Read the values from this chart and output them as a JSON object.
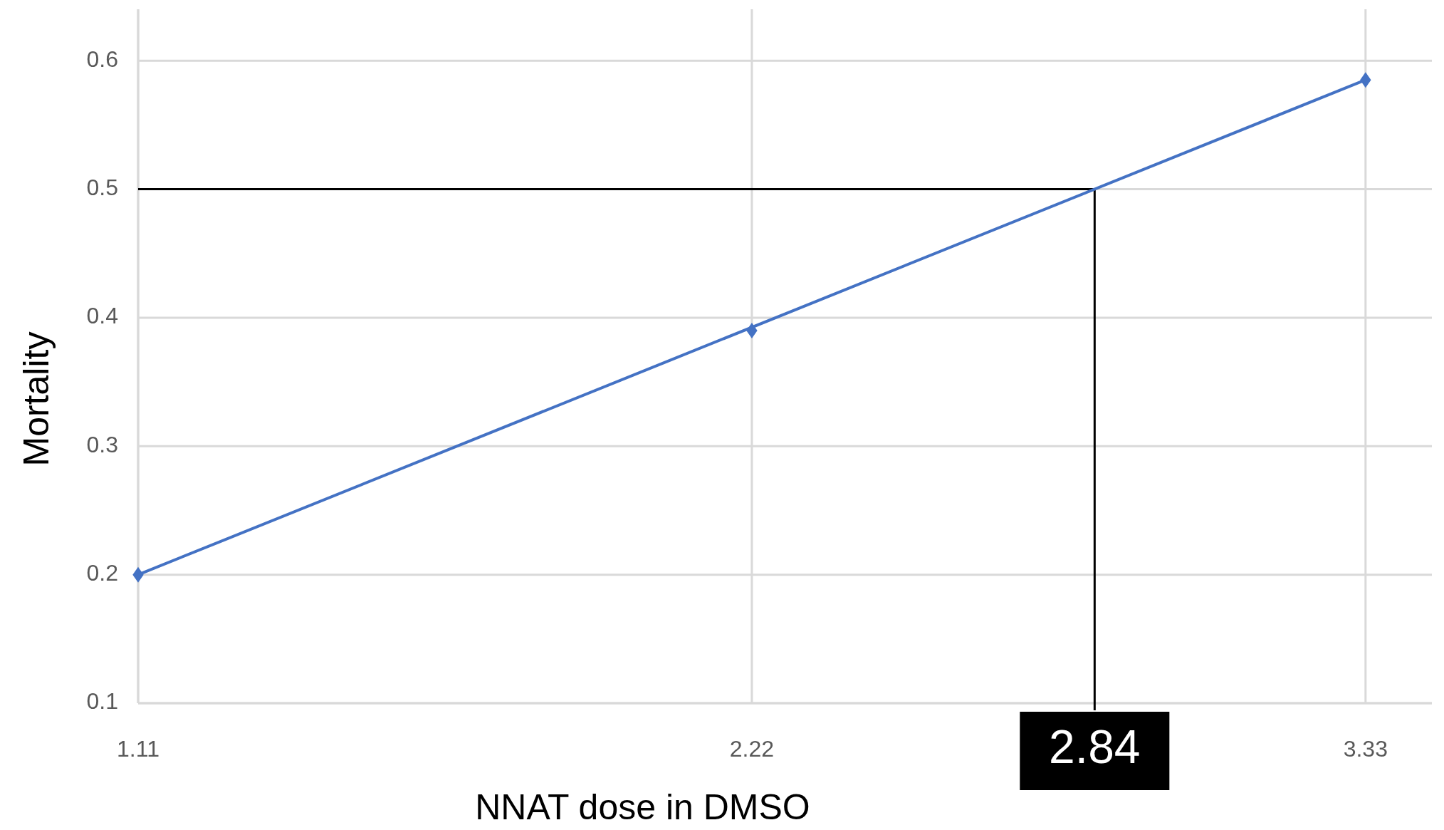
{
  "chart_data": {
    "type": "scatter",
    "xlabel": "NNAT dose in DMSO",
    "ylabel": "Mortality",
    "xlim": [
      1.11,
      3.45
    ],
    "xticks": [
      1.11,
      2.22,
      3.33
    ],
    "ylim": [
      0.1,
      0.64
    ],
    "yticks": [
      0.1,
      0.2,
      0.3,
      0.4,
      0.5,
      0.6
    ],
    "grid": true,
    "marker": "diamond",
    "series": [
      {
        "color": "#4472c4",
        "x": [
          1.11,
          2.22,
          3.33
        ],
        "values": [
          0.2,
          0.39,
          0.585
        ]
      },
      {
        "type": "line",
        "color": "#4472c4",
        "marker": "none",
        "x": [
          1.11,
          3.33
        ],
        "values": [
          0.2,
          0.585
        ]
      }
    ],
    "ref_lines": [
      {
        "axis": "y",
        "value": 0.5,
        "color": "#000000"
      },
      {
        "axis": "x",
        "value": 2.84,
        "label": "2.84",
        "color": "#000000"
      }
    ]
  }
}
